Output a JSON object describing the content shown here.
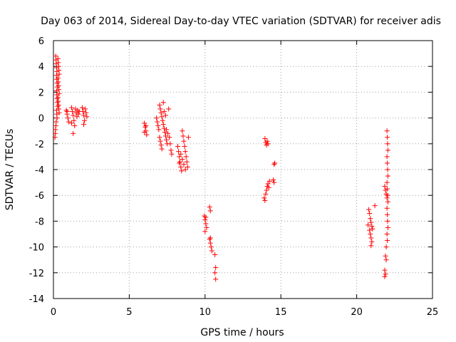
{
  "chart_data": {
    "type": "scatter",
    "title": "Day 063 of 2014, Sidereal Day-to-day VTEC variation (SDTVAR) for receiver adis",
    "xlabel": "GPS time / hours",
    "ylabel": "SDTVAR / TECUs",
    "xlim": [
      0,
      25
    ],
    "ylim": [
      -14,
      6
    ],
    "xticks": [
      0,
      5,
      10,
      15,
      20,
      25
    ],
    "yticks": [
      -14,
      -12,
      -10,
      -8,
      -6,
      -4,
      -2,
      0,
      2,
      4,
      6
    ],
    "grid": true,
    "marker": "+",
    "colors": {
      "points": "#ff0000",
      "grid": "#a0a0a0",
      "axes": "#000000",
      "background": "#ffffff"
    },
    "series": [
      {
        "name": "SDTVAR",
        "points": [
          [
            0.15,
            4.8
          ],
          [
            0.17,
            4.5
          ],
          [
            0.19,
            4.2
          ],
          [
            0.21,
            3.9
          ],
          [
            0.23,
            3.6
          ],
          [
            0.2,
            3.3
          ],
          [
            0.22,
            3.0
          ],
          [
            0.24,
            2.7
          ],
          [
            0.26,
            2.4
          ],
          [
            0.2,
            2.1
          ],
          [
            0.22,
            1.8
          ],
          [
            0.24,
            1.5
          ],
          [
            0.26,
            1.2
          ],
          [
            0.28,
            0.9
          ],
          [
            0.2,
            0.6
          ],
          [
            0.22,
            0.3
          ],
          [
            0.24,
            0.0
          ],
          [
            0.18,
            -0.3
          ],
          [
            0.16,
            -0.6
          ],
          [
            0.14,
            -0.9
          ],
          [
            0.12,
            -1.2
          ],
          [
            0.1,
            -1.5
          ],
          [
            0.3,
            4.6
          ],
          [
            0.32,
            4.3
          ],
          [
            0.34,
            4.0
          ],
          [
            0.36,
            3.7
          ],
          [
            0.38,
            3.4
          ],
          [
            0.3,
            3.1
          ],
          [
            0.32,
            2.8
          ],
          [
            0.34,
            2.5
          ],
          [
            0.36,
            2.2
          ],
          [
            0.38,
            1.9
          ],
          [
            0.3,
            1.6
          ],
          [
            0.32,
            1.3
          ],
          [
            0.34,
            1.0
          ],
          [
            0.36,
            0.7
          ],
          [
            0.38,
            0.4
          ],
          [
            0.85,
            0.6
          ],
          [
            0.9,
            0.3
          ],
          [
            0.95,
            0.0
          ],
          [
            1.0,
            -0.3
          ],
          [
            0.9,
            0.5
          ],
          [
            1.2,
            0.8
          ],
          [
            1.25,
            0.5
          ],
          [
            1.3,
            0.2
          ],
          [
            1.35,
            -0.2
          ],
          [
            1.4,
            -0.6
          ],
          [
            1.45,
            0.7
          ],
          [
            1.5,
            0.4
          ],
          [
            1.55,
            0.1
          ],
          [
            1.6,
            0.6
          ],
          [
            1.65,
            0.3
          ],
          [
            1.7,
            0.5
          ],
          [
            1.3,
            -1.2
          ],
          [
            1.2,
            -0.4
          ],
          [
            1.9,
            0.8
          ],
          [
            1.95,
            0.5
          ],
          [
            2.0,
            0.2
          ],
          [
            2.05,
            -0.2
          ],
          [
            2.1,
            0.7
          ],
          [
            2.15,
            0.4
          ],
          [
            2.2,
            0.1
          ],
          [
            2.0,
            -0.5
          ],
          [
            6.0,
            -0.4
          ],
          [
            6.05,
            -0.7
          ],
          [
            6.1,
            -1.0
          ],
          [
            6.15,
            -1.3
          ],
          [
            6.1,
            -0.6
          ],
          [
            6.0,
            -1.1
          ],
          [
            6.8,
            0.0
          ],
          [
            6.85,
            -0.3
          ],
          [
            6.9,
            -0.6
          ],
          [
            6.95,
            -0.9
          ],
          [
            7.0,
            1.0
          ],
          [
            7.05,
            0.7
          ],
          [
            7.1,
            0.4
          ],
          [
            7.15,
            0.1
          ],
          [
            7.2,
            -0.2
          ],
          [
            7.25,
            -0.5
          ],
          [
            7.3,
            -0.8
          ],
          [
            7.35,
            -1.1
          ],
          [
            7.4,
            -1.4
          ],
          [
            7.45,
            -1.7
          ],
          [
            7.5,
            -2.0
          ],
          [
            7.0,
            -1.5
          ],
          [
            7.05,
            -1.8
          ],
          [
            7.1,
            -2.1
          ],
          [
            7.15,
            -2.4
          ],
          [
            7.3,
            0.5
          ],
          [
            7.4,
            0.2
          ],
          [
            7.6,
            0.7
          ],
          [
            7.65,
            -1.5
          ],
          [
            7.7,
            -2.0
          ],
          [
            7.75,
            -2.5
          ],
          [
            7.8,
            -2.8
          ],
          [
            7.55,
            -1.2
          ],
          [
            7.45,
            -0.9
          ],
          [
            7.25,
            1.2
          ],
          [
            8.2,
            -2.2
          ],
          [
            8.25,
            -2.6
          ],
          [
            8.3,
            -3.0
          ],
          [
            8.35,
            -3.4
          ],
          [
            8.4,
            -3.8
          ],
          [
            8.45,
            -4.1
          ],
          [
            8.5,
            -1.0
          ],
          [
            8.55,
            -1.4
          ],
          [
            8.6,
            -1.8
          ],
          [
            8.65,
            -2.2
          ],
          [
            8.7,
            -2.6
          ],
          [
            8.75,
            -3.0
          ],
          [
            8.8,
            -3.4
          ],
          [
            8.85,
            -3.8
          ],
          [
            8.9,
            -1.5
          ],
          [
            8.5,
            -3.2
          ],
          [
            8.6,
            -3.6
          ],
          [
            8.7,
            -4.0
          ],
          [
            8.4,
            -2.8
          ],
          [
            8.3,
            -3.5
          ],
          [
            9.95,
            -7.6
          ],
          [
            10.0,
            -7.9
          ],
          [
            10.05,
            -8.2
          ],
          [
            10.1,
            -8.5
          ],
          [
            10.0,
            -8.8
          ],
          [
            10.05,
            -7.7
          ],
          [
            10.3,
            -6.9
          ],
          [
            10.35,
            -7.2
          ],
          [
            10.3,
            -9.4
          ],
          [
            10.35,
            -9.7
          ],
          [
            10.4,
            -10.0
          ],
          [
            10.45,
            -10.3
          ],
          [
            10.35,
            -9.3
          ],
          [
            10.65,
            -10.6
          ],
          [
            10.7,
            -11.6
          ],
          [
            10.65,
            -12.0
          ],
          [
            10.7,
            -12.5
          ],
          [
            13.95,
            -1.6
          ],
          [
            14.0,
            -1.9
          ],
          [
            14.05,
            -2.1
          ],
          [
            14.1,
            -1.8
          ],
          [
            14.15,
            -2.0
          ],
          [
            13.9,
            -6.2
          ],
          [
            13.95,
            -6.4
          ],
          [
            14.0,
            -5.9
          ],
          [
            14.05,
            -5.6
          ],
          [
            14.1,
            -5.3
          ],
          [
            14.15,
            -5.1
          ],
          [
            14.2,
            -5.4
          ],
          [
            14.25,
            -4.9
          ],
          [
            14.5,
            -4.8
          ],
          [
            14.55,
            -5.0
          ],
          [
            14.6,
            -3.5
          ],
          [
            14.55,
            -3.6
          ],
          [
            20.8,
            -7.1
          ],
          [
            20.85,
            -7.4
          ],
          [
            20.9,
            -7.8
          ],
          [
            20.95,
            -8.1
          ],
          [
            21.0,
            -8.4
          ],
          [
            20.85,
            -8.7
          ],
          [
            20.9,
            -9.0
          ],
          [
            20.95,
            -9.3
          ],
          [
            21.0,
            -9.6
          ],
          [
            20.95,
            -9.9
          ],
          [
            21.05,
            -8.6
          ],
          [
            20.75,
            -8.3
          ],
          [
            21.2,
            -6.8
          ],
          [
            21.85,
            -5.3
          ],
          [
            21.9,
            -5.6
          ],
          [
            21.95,
            -5.9
          ],
          [
            21.85,
            -11.8
          ],
          [
            21.9,
            -12.1
          ],
          [
            21.85,
            -12.3
          ],
          [
            21.9,
            -10.7
          ],
          [
            21.95,
            -11.0
          ],
          [
            22.0,
            -1.0
          ],
          [
            22.02,
            -1.5
          ],
          [
            22.04,
            -2.0
          ],
          [
            22.06,
            -2.5
          ],
          [
            22.0,
            -3.0
          ],
          [
            22.02,
            -3.5
          ],
          [
            22.04,
            -4.0
          ],
          [
            22.06,
            -4.5
          ],
          [
            22.0,
            -5.0
          ],
          [
            22.02,
            -5.5
          ],
          [
            22.04,
            -6.0
          ],
          [
            22.06,
            -6.5
          ],
          [
            22.0,
            -7.0
          ],
          [
            22.02,
            -7.5
          ],
          [
            22.04,
            -8.0
          ],
          [
            22.06,
            -8.5
          ],
          [
            22.0,
            -9.0
          ],
          [
            22.02,
            -9.5
          ],
          [
            21.95,
            -10.0
          ],
          [
            22.0,
            -6.2
          ]
        ]
      }
    ]
  }
}
